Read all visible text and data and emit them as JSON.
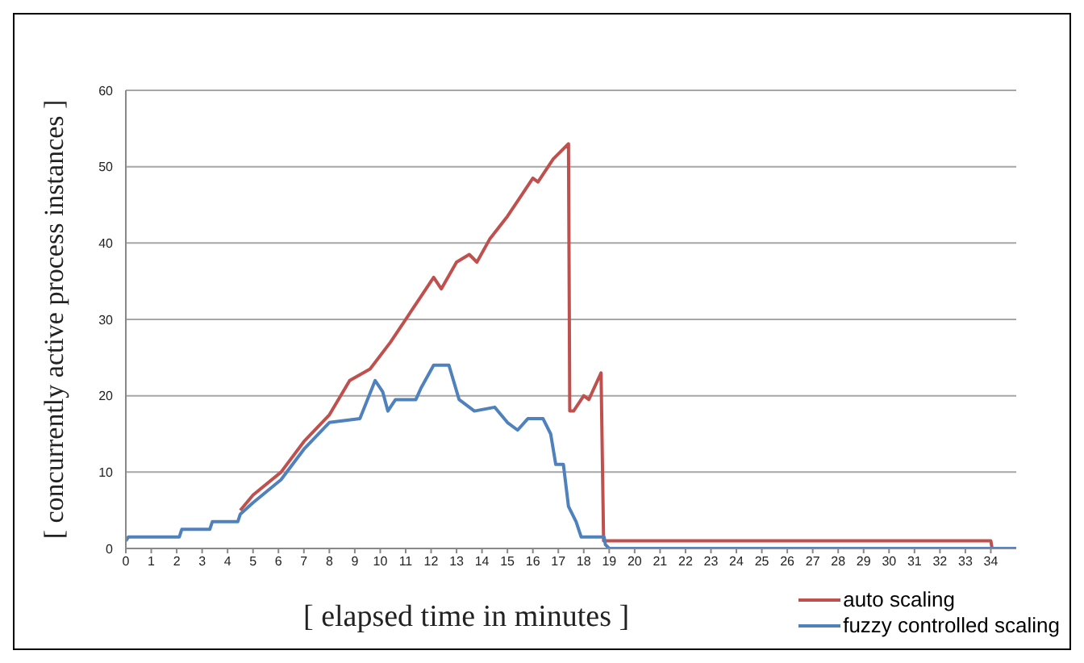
{
  "chart_data": {
    "type": "line",
    "xlabel": "[ elapsed time in minutes ]",
    "ylabel": "[ concurrently active process instances ]",
    "xlim": [
      0,
      35
    ],
    "xticks": [
      0,
      1,
      2,
      3,
      4,
      5,
      6,
      7,
      8,
      9,
      10,
      11,
      12,
      13,
      14,
      15,
      16,
      17,
      18,
      19,
      20,
      21,
      22,
      23,
      24,
      25,
      26,
      27,
      28,
      29,
      30,
      31,
      32,
      33,
      34
    ],
    "ylim": [
      0,
      60
    ],
    "yticks": [
      0,
      10,
      20,
      30,
      40,
      50,
      60
    ],
    "grid": "y",
    "legend": "bottom right",
    "marker": "none",
    "line_style": "solid",
    "series": [
      {
        "name": "auto scaling",
        "color": "#c0504d",
        "x": [
          4.5,
          5,
          6.1,
          7,
          8,
          8.8,
          9.6,
          10.4,
          11.1,
          11.6,
          12.1,
          12.4,
          13,
          13.5,
          13.8,
          14.3,
          15,
          15.6,
          16,
          16.2,
          16.8,
          17.4,
          17.45,
          17.6,
          18,
          18.2,
          18.68,
          18.78,
          19,
          34,
          34.05,
          35
        ],
        "values": [
          5,
          7,
          10,
          14,
          17.5,
          22,
          23.5,
          27,
          30.5,
          33,
          35.5,
          34,
          37.5,
          38.5,
          37.5,
          40.5,
          43.5,
          46.5,
          48.5,
          48,
          51,
          53,
          18,
          18,
          20,
          19.5,
          23,
          1,
          1,
          1,
          0,
          0
        ]
      },
      {
        "name": "fuzzy controlled scaling",
        "color": "#4f81bd",
        "x": [
          0,
          0.1,
          2.1,
          2.2,
          3.3,
          3.4,
          4.4,
          4.5,
          5,
          6.1,
          7,
          8,
          9.2,
          9.8,
          10.1,
          10.3,
          10.6,
          11.4,
          11.6,
          12.1,
          12.7,
          13.1,
          13.7,
          14.5,
          15,
          15.4,
          15.8,
          16.4,
          16.7,
          16.9,
          17.2,
          17.4,
          17.7,
          17.9,
          18.8,
          18.85,
          19,
          35
        ],
        "values": [
          1,
          1.5,
          1.5,
          2.5,
          2.5,
          3.5,
          3.5,
          4.5,
          6,
          9,
          13,
          16.5,
          17,
          22,
          20.5,
          18,
          19.5,
          19.5,
          21,
          24,
          24,
          19.5,
          18,
          18.5,
          16.5,
          15.5,
          17,
          17,
          15,
          11,
          11,
          5.5,
          3.5,
          1.5,
          1.5,
          0.5,
          0,
          0
        ]
      }
    ]
  }
}
